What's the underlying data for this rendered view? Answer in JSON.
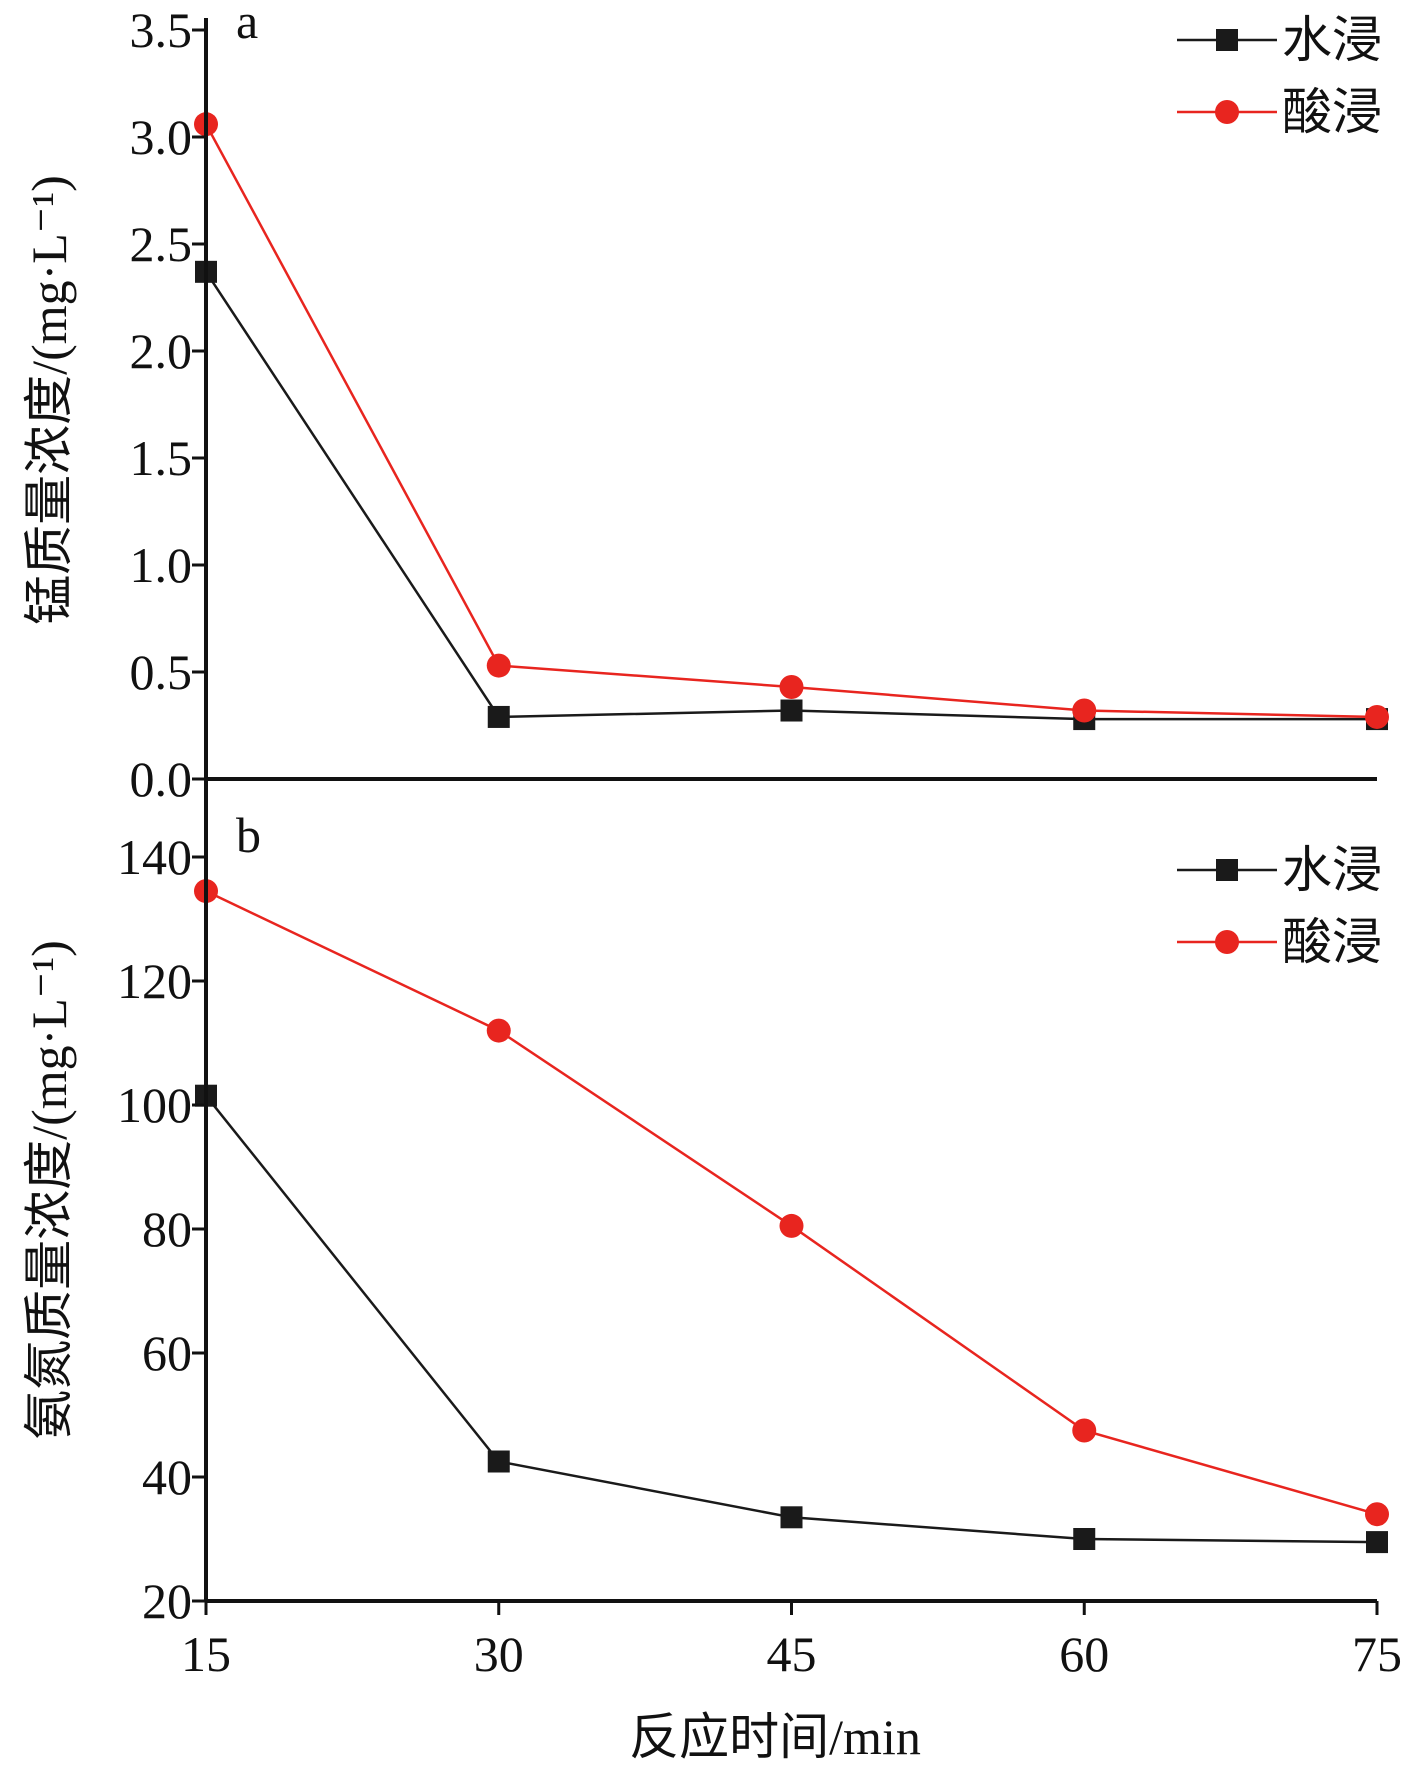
{
  "chart_data": [
    {
      "type": "line",
      "panel_label": "a",
      "ylabel": "锰质量浓度/(mg·L⁻¹)",
      "ylim": [
        0,
        3.5
      ],
      "y_ticks": [
        "0.0",
        "0.5",
        "1.0",
        "1.5",
        "2.0",
        "2.5",
        "3.0",
        "3.5"
      ],
      "y_tick_values": [
        0,
        0.5,
        1.0,
        1.5,
        2.0,
        2.5,
        3.0,
        3.5
      ],
      "x": [
        15,
        30,
        45,
        60,
        75
      ],
      "xlim": [
        15,
        75
      ],
      "legend_position": "top-right",
      "grid": false,
      "series": [
        {
          "name": "水浸",
          "color": "#1a1a1a",
          "marker": "square",
          "values": [
            2.37,
            0.29,
            0.32,
            0.28,
            0.28
          ]
        },
        {
          "name": "酸浸",
          "color": "#e8251f",
          "marker": "circle",
          "values": [
            3.06,
            0.53,
            0.43,
            0.32,
            0.29
          ]
        }
      ]
    },
    {
      "type": "line",
      "panel_label": "b",
      "ylabel": "氨氮质量浓度/(mg·L⁻¹)",
      "xlabel": "反应时间/min",
      "ylim": [
        20,
        150
      ],
      "y_ticks": [
        "20",
        "40",
        "60",
        "80",
        "100",
        "120",
        "140"
      ],
      "y_tick_values": [
        20,
        40,
        60,
        80,
        100,
        120,
        140
      ],
      "x": [
        15,
        30,
        45,
        60,
        75
      ],
      "x_ticks": [
        "15",
        "30",
        "45",
        "60",
        "75"
      ],
      "xlim": [
        15,
        75
      ],
      "legend_position": "top-right",
      "grid": false,
      "series": [
        {
          "name": "水浸",
          "color": "#1a1a1a",
          "marker": "square",
          "values": [
            101.5,
            42.5,
            33.5,
            30.0,
            29.5
          ]
        },
        {
          "name": "酸浸",
          "color": "#e8251f",
          "marker": "circle",
          "values": [
            134.5,
            112.0,
            80.5,
            47.5,
            34.0
          ]
        }
      ]
    }
  ]
}
